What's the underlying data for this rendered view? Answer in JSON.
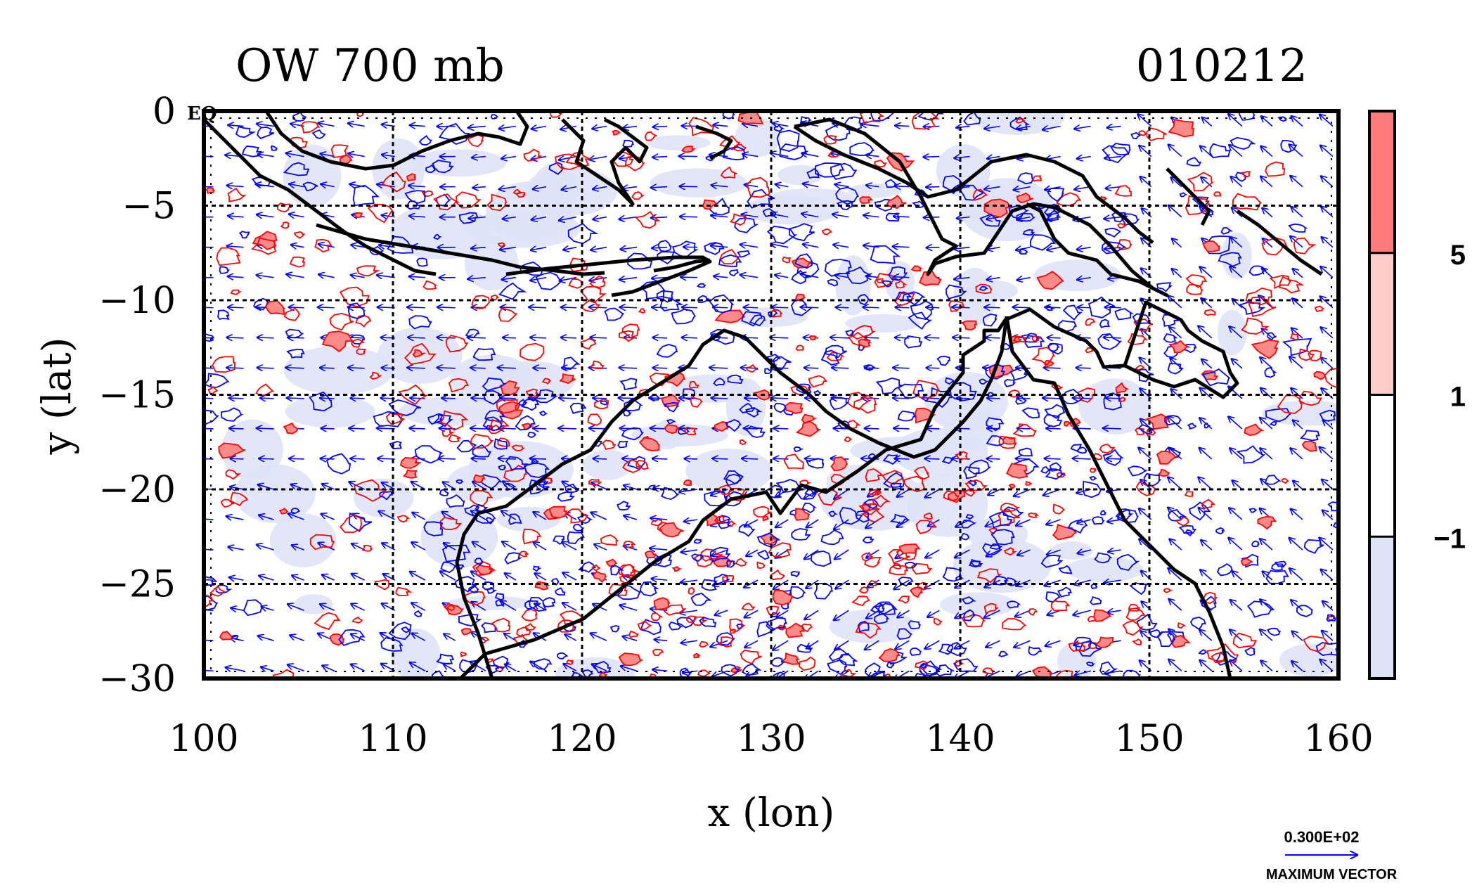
{
  "chart_data": {
    "type": "contour",
    "title_left": "OW 700 mb",
    "title_right": "010212",
    "xlabel": "x (lon)",
    "ylabel": "y (lat)",
    "xlim": [
      100,
      160
    ],
    "ylim": [
      -30,
      0
    ],
    "x_ticks": [
      100,
      110,
      120,
      130,
      140,
      150,
      160
    ],
    "y_ticks": [
      0,
      -5,
      -10,
      -15,
      -20,
      -25,
      -30
    ],
    "y_tick_labels": [
      "0",
      "−5",
      "−10",
      "−15",
      "−20",
      "−25",
      "−30"
    ],
    "equator_label": "EQ",
    "grid": true,
    "colorbar": {
      "levels": [
        -1,
        1,
        5
      ],
      "level_labels": [
        "−1",
        "1",
        "5"
      ],
      "colors": [
        "#dfe3f7",
        "#ffffff",
        "#ffcccc",
        "#ff7a7a"
      ]
    },
    "series": [
      {
        "name": "OW contours (positive)",
        "color": "#ff0000"
      },
      {
        "name": "OW contours (negative)",
        "color": "#0000ff"
      },
      {
        "name": "wind vectors",
        "color": "#0000ff"
      },
      {
        "name": "coastline",
        "color": "#000000"
      }
    ],
    "vector_key": {
      "value_label": "0.300E+02",
      "caption": "MAXIMUM VECTOR",
      "color": "#0000ff"
    }
  }
}
